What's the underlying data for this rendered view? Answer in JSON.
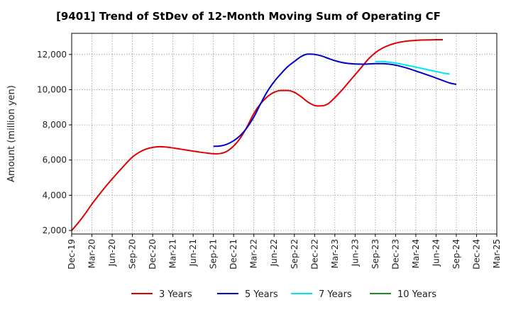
{
  "chart_data": {
    "type": "line",
    "title": "[9401]  Trend of StDev of 12-Month Moving Sum of Operating CF",
    "ylabel": "Amount (million yen)",
    "xlabel": "",
    "ylim": [
      1800,
      13200
    ],
    "yticks": [
      2000,
      4000,
      6000,
      8000,
      10000,
      12000
    ],
    "ytick_labels": [
      "2,000",
      "4,000",
      "6,000",
      "8,000",
      "10,000",
      "12,000"
    ],
    "x_categories": [
      "Dec-19",
      "Mar-20",
      "Jun-20",
      "Sep-20",
      "Dec-20",
      "Mar-21",
      "Jun-21",
      "Sep-21",
      "Dec-21",
      "Mar-22",
      "Jun-22",
      "Sep-22",
      "Dec-22",
      "Mar-23",
      "Jun-23",
      "Sep-23",
      "Dec-23",
      "Mar-24",
      "Jun-24",
      "Sep-24",
      "Dec-24",
      "Mar-25"
    ],
    "grid": true,
    "legend_position": "bottom",
    "series": [
      {
        "name": "3 Years",
        "color": "#e00000",
        "start_index": 0,
        "values": [
          2000,
          2450,
          2950,
          3500,
          4000,
          4480,
          4930,
          5360,
          5780,
          6170,
          6440,
          6620,
          6720,
          6760,
          6740,
          6690,
          6630,
          6570,
          6510,
          6450,
          6400,
          6360,
          6370,
          6500,
          6800,
          7250,
          7900,
          8650,
          9200,
          9600,
          9850,
          9950,
          9950,
          9850,
          9600,
          9300,
          9100,
          9080,
          9200,
          9550,
          9950,
          10400,
          10850,
          11300,
          11750,
          12100,
          12350,
          12520,
          12640,
          12720,
          12770,
          12800,
          12820,
          12830,
          12835,
          12840
        ]
      },
      {
        "name": "5 Years",
        "color": "#0000cc",
        "start_index": 21,
        "values": [
          6780,
          6800,
          6900,
          7100,
          7400,
          7850,
          8450,
          9200,
          9900,
          10450,
          10900,
          11300,
          11600,
          11880,
          12020,
          12000,
          11920,
          11780,
          11650,
          11550,
          11490,
          11460,
          11450,
          11460,
          11480,
          11480,
          11450,
          11390,
          11300,
          11190,
          11060,
          10930,
          10800,
          10660,
          10520,
          10380,
          10300
        ]
      },
      {
        "name": "7 Years",
        "color": "#00e5ee",
        "start_index": 45,
        "values": [
          11600,
          11600,
          11560,
          11510,
          11440,
          11360,
          11280,
          11200,
          11110,
          11030,
          10950,
          10890
        ]
      },
      {
        "name": "10 Years",
        "color": "#228b22",
        "start_index": 0,
        "values": []
      }
    ]
  }
}
